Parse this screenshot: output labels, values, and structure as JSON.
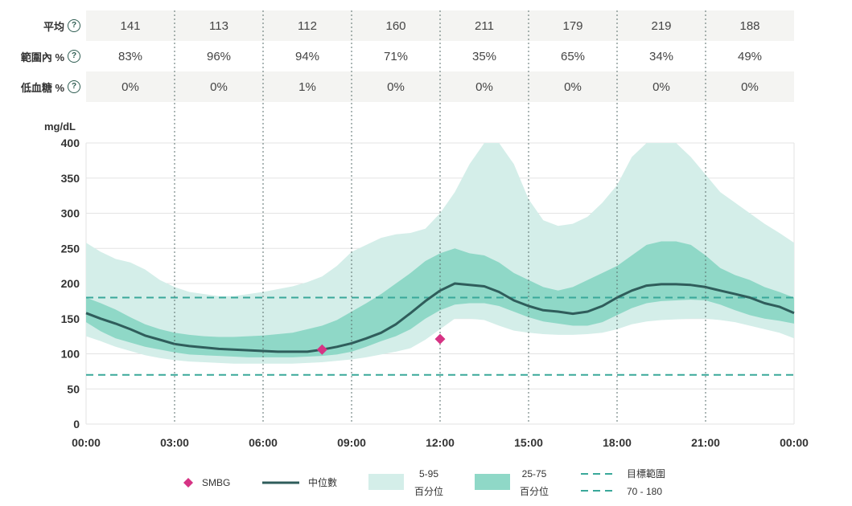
{
  "stats": {
    "rows": [
      {
        "label": "平均",
        "values": [
          "141",
          "113",
          "112",
          "160",
          "211",
          "179",
          "219",
          "188"
        ]
      },
      {
        "label": "範圍內 %",
        "values": [
          "83%",
          "96%",
          "94%",
          "71%",
          "35%",
          "65%",
          "34%",
          "49%"
        ]
      },
      {
        "label": "低血糖 %",
        "values": [
          "0%",
          "0%",
          "1%",
          "0%",
          "0%",
          "0%",
          "0%",
          "0%"
        ]
      }
    ],
    "help_glyph": "?"
  },
  "chart_data": {
    "type": "line",
    "ylabel": "mg/dL",
    "ylim": [
      0,
      400
    ],
    "yticks": [
      "0",
      "50",
      "100",
      "150",
      "200",
      "250",
      "300",
      "350",
      "400"
    ],
    "xlim": [
      0,
      24
    ],
    "xticks": [
      "00:00",
      "03:00",
      "06:00",
      "09:00",
      "12:00",
      "15:00",
      "18:00",
      "21:00",
      "00:00"
    ],
    "target_range": [
      70,
      180
    ],
    "x": [
      0,
      0.5,
      1,
      1.5,
      2,
      2.5,
      3,
      3.5,
      4,
      4.5,
      5,
      5.5,
      6,
      6.5,
      7,
      7.5,
      8,
      8.5,
      9,
      9.5,
      10,
      10.5,
      11,
      11.5,
      12,
      12.5,
      13,
      13.5,
      14,
      14.5,
      15,
      15.5,
      16,
      16.5,
      17,
      17.5,
      18,
      18.5,
      19,
      19.5,
      20,
      20.5,
      21,
      21.5,
      22,
      22.5,
      23,
      23.5,
      24
    ],
    "series": [
      {
        "name": "median",
        "values": [
          158,
          150,
          143,
          135,
          126,
          120,
          114,
          111,
          109,
          107,
          106,
          105,
          104,
          103,
          103,
          103,
          106,
          110,
          115,
          122,
          130,
          142,
          158,
          175,
          190,
          200,
          198,
          196,
          188,
          176,
          168,
          162,
          160,
          157,
          160,
          168,
          180,
          190,
          197,
          199,
          199,
          198,
          195,
          190,
          185,
          180,
          172,
          167,
          158
        ]
      },
      {
        "name": "p25",
        "values": [
          145,
          132,
          122,
          116,
          110,
          106,
          102,
          99,
          98,
          97,
          96,
          95,
          95,
          95,
          95,
          96,
          97,
          99,
          103,
          110,
          118,
          125,
          135,
          150,
          162,
          170,
          172,
          172,
          168,
          160,
          152,
          146,
          143,
          140,
          140,
          145,
          155,
          165,
          172,
          175,
          176,
          177,
          176,
          170,
          162,
          155,
          150,
          147,
          143
        ]
      },
      {
        "name": "p75",
        "values": [
          180,
          172,
          163,
          152,
          142,
          135,
          130,
          127,
          125,
          124,
          124,
          125,
          126,
          128,
          130,
          135,
          140,
          148,
          160,
          172,
          185,
          200,
          215,
          232,
          243,
          250,
          243,
          240,
          230,
          215,
          205,
          195,
          190,
          195,
          205,
          215,
          225,
          240,
          255,
          260,
          260,
          255,
          240,
          222,
          212,
          205,
          195,
          188,
          180
        ]
      },
      {
        "name": "p5",
        "values": [
          125,
          118,
          110,
          104,
          98,
          94,
          91,
          89,
          88,
          87,
          86,
          86,
          86,
          86,
          86,
          87,
          88,
          90,
          92,
          95,
          99,
          103,
          108,
          120,
          135,
          150,
          150,
          148,
          140,
          133,
          130,
          128,
          127,
          127,
          128,
          130,
          135,
          142,
          146,
          148,
          149,
          150,
          150,
          148,
          145,
          140,
          135,
          130,
          122
        ]
      },
      {
        "name": "p95",
        "values": [
          258,
          245,
          235,
          230,
          220,
          205,
          195,
          188,
          185,
          182,
          182,
          185,
          188,
          192,
          196,
          202,
          210,
          225,
          245,
          255,
          265,
          270,
          272,
          278,
          300,
          330,
          370,
          400,
          400,
          370,
          320,
          290,
          282,
          285,
          295,
          315,
          340,
          380,
          400,
          400,
          400,
          380,
          355,
          330,
          315,
          300,
          285,
          272,
          258
        ]
      }
    ],
    "smbg": [
      {
        "x": 8,
        "y": 106
      },
      {
        "x": 12,
        "y": 121
      }
    ],
    "legend": {
      "smbg": "SMBG",
      "median": "中位數",
      "p5_95_top": "5-95",
      "p5_95_bottom": "百分位",
      "p25_75_top": "25-75",
      "p25_75_bottom": "百分位",
      "target_top": "目標範圍",
      "target_bottom": "70 - 180"
    },
    "colors": {
      "band_outer": "#d4eee9",
      "band_inner": "#8fd8c7",
      "median": "#2f5d5b",
      "target": "#3aa89a",
      "smbg": "#d63384",
      "grid": "#e3e3e3",
      "divider": "#5a6f6c"
    }
  }
}
